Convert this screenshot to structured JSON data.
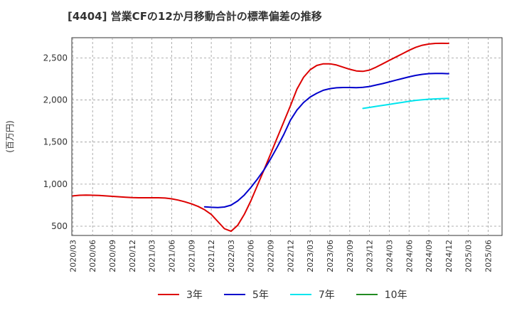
{
  "chart_data": {
    "type": "line",
    "title": "[4404]  営業CFの12か月移動合計の標準偏差の推移",
    "ylabel": "(百万円)",
    "xlabel": "",
    "ylim": [
      390,
      2740
    ],
    "yticks": [
      500,
      1000,
      1500,
      2000,
      2500
    ],
    "ytick_labels": [
      "500",
      "1,000",
      "1,500",
      "2,000",
      "2,500"
    ],
    "x_tick_labels": [
      "2020/03",
      "2020/06",
      "2020/09",
      "2020/12",
      "2021/03",
      "2021/06",
      "2021/09",
      "2021/12",
      "2022/03",
      "2022/06",
      "2022/09",
      "2022/12",
      "2023/03",
      "2023/06",
      "2023/09",
      "2023/12",
      "2024/03",
      "2024/06",
      "2024/09",
      "2024/12",
      "2025/03",
      "2025/06"
    ],
    "grid": true,
    "legend_position": "bottom",
    "series": [
      {
        "name": "3年",
        "color": "#dd0000",
        "x": [
          "2020/03",
          "2020/04",
          "2020/05",
          "2020/06",
          "2020/07",
          "2020/08",
          "2020/09",
          "2020/10",
          "2020/11",
          "2020/12",
          "2021/01",
          "2021/02",
          "2021/03",
          "2021/04",
          "2021/05",
          "2021/06",
          "2021/07",
          "2021/08",
          "2021/09",
          "2021/10",
          "2021/11",
          "2021/12",
          "2022/01",
          "2022/02",
          "2022/03",
          "2022/04",
          "2022/05",
          "2022/06",
          "2022/07",
          "2022/08",
          "2022/09",
          "2022/10",
          "2022/11",
          "2022/12",
          "2023/01",
          "2023/02",
          "2023/03",
          "2023/04",
          "2023/05",
          "2023/06",
          "2023/07",
          "2023/08",
          "2023/09",
          "2023/10",
          "2023/11",
          "2023/12",
          "2024/01",
          "2024/02",
          "2024/03",
          "2024/04",
          "2024/05",
          "2024/06",
          "2024/07",
          "2024/08",
          "2024/09",
          "2024/10",
          "2024/11",
          "2024/12"
        ],
        "values": [
          860,
          868,
          870,
          868,
          865,
          860,
          855,
          850,
          845,
          840,
          838,
          838,
          838,
          838,
          835,
          825,
          810,
          790,
          765,
          735,
          695,
          640,
          555,
          470,
          440,
          510,
          640,
          800,
          985,
          1170,
          1360,
          1550,
          1740,
          1930,
          2130,
          2270,
          2360,
          2410,
          2430,
          2430,
          2415,
          2390,
          2365,
          2345,
          2340,
          2355,
          2390,
          2430,
          2470,
          2510,
          2550,
          2590,
          2625,
          2650,
          2665,
          2672,
          2673,
          2672
        ]
      },
      {
        "name": "5年",
        "color": "#0000cc",
        "x": [
          "2021/11",
          "2021/12",
          "2022/01",
          "2022/02",
          "2022/03",
          "2022/04",
          "2022/05",
          "2022/06",
          "2022/07",
          "2022/08",
          "2022/09",
          "2022/10",
          "2022/11",
          "2022/12",
          "2023/01",
          "2023/02",
          "2023/03",
          "2023/04",
          "2023/05",
          "2023/06",
          "2023/07",
          "2023/08",
          "2023/09",
          "2023/10",
          "2023/11",
          "2023/12",
          "2024/01",
          "2024/02",
          "2024/03",
          "2024/04",
          "2024/05",
          "2024/06",
          "2024/07",
          "2024/08",
          "2024/09",
          "2024/10",
          "2024/11",
          "2024/12"
        ],
        "values": [
          730,
          725,
          722,
          728,
          750,
          800,
          870,
          960,
          1060,
          1170,
          1300,
          1440,
          1590,
          1760,
          1880,
          1970,
          2035,
          2080,
          2115,
          2135,
          2145,
          2148,
          2148,
          2147,
          2150,
          2160,
          2178,
          2195,
          2215,
          2235,
          2255,
          2275,
          2292,
          2305,
          2313,
          2316,
          2316,
          2312
        ]
      },
      {
        "name": "7年",
        "color": "#00e5ee",
        "x": [
          "2023/11",
          "2023/12",
          "2024/01",
          "2024/02",
          "2024/03",
          "2024/04",
          "2024/05",
          "2024/06",
          "2024/07",
          "2024/08",
          "2024/09",
          "2024/10",
          "2024/11",
          "2024/12"
        ],
        "values": [
          1900,
          1912,
          1924,
          1936,
          1948,
          1960,
          1972,
          1984,
          1995,
          2003,
          2009,
          2013,
          2016,
          2018
        ]
      },
      {
        "name": "10年",
        "color": "#228b22",
        "x": [],
        "values": []
      }
    ]
  }
}
